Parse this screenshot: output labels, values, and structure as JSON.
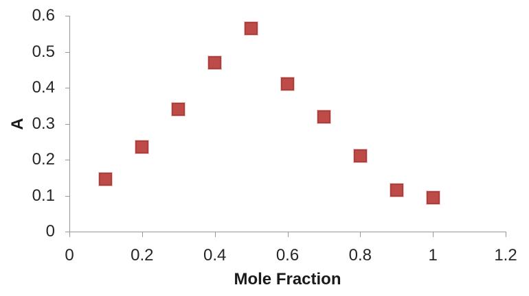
{
  "chart_data": {
    "type": "scatter",
    "title": "",
    "xlabel": "Mole Fraction",
    "ylabel": "A",
    "xlim": [
      0,
      1.2
    ],
    "ylim": [
      0,
      0.6
    ],
    "grid": false,
    "legend": false,
    "x_ticks": [
      {
        "label": "0",
        "value": 0
      },
      {
        "label": "0.2",
        "value": 0.2
      },
      {
        "label": "0.4",
        "value": 0.4
      },
      {
        "label": "0.6",
        "value": 0.6
      },
      {
        "label": "0.8",
        "value": 0.8
      },
      {
        "label": "1",
        "value": 1
      },
      {
        "label": "1.2",
        "value": 1.2
      }
    ],
    "y_ticks": [
      {
        "label": "0",
        "value": 0
      },
      {
        "label": "0.1",
        "value": 0.1
      },
      {
        "label": "0.2",
        "value": 0.2
      },
      {
        "label": "0.3",
        "value": 0.3
      },
      {
        "label": "0.4",
        "value": 0.4
      },
      {
        "label": "0.5",
        "value": 0.5
      },
      {
        "label": "0.6",
        "value": 0.6
      }
    ],
    "series": [
      {
        "name": "A",
        "marker": "square",
        "x": [
          0.1,
          0.2,
          0.3,
          0.4,
          0.5,
          0.6,
          0.7,
          0.8,
          0.9,
          1.0
        ],
        "y": [
          0.145,
          0.235,
          0.34,
          0.47,
          0.565,
          0.41,
          0.32,
          0.21,
          0.115,
          0.095
        ]
      }
    ]
  },
  "colors": {
    "marker_fill": "#BE4B48",
    "marker_border": "#A8403E",
    "marker_halo": "#EEC6C5",
    "axis_line": "#969696",
    "text": "#262626"
  }
}
